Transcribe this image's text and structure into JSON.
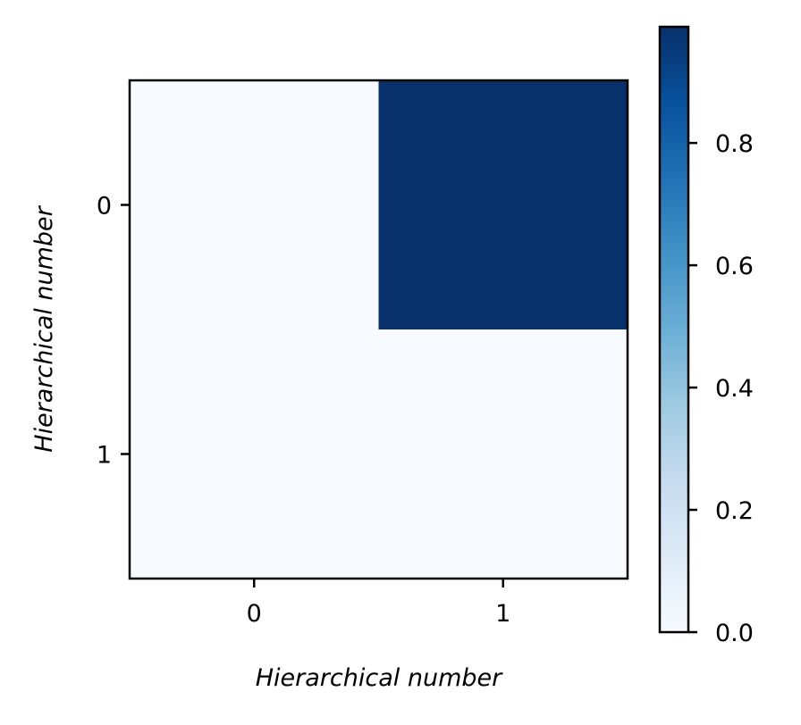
{
  "chart_data": {
    "type": "heatmap",
    "title": "",
    "xlabel": "Hierarchical number",
    "ylabel": "Hierarchical number",
    "x_categories": [
      "0",
      "1"
    ],
    "y_categories": [
      "0",
      "1"
    ],
    "values": [
      [
        0.0,
        0.99
      ],
      [
        0.0,
        0.0
      ]
    ],
    "colormap": "Blues",
    "colorbar": {
      "min": 0.0,
      "max": 0.99,
      "ticks": [
        0.0,
        0.2,
        0.4,
        0.6,
        0.8
      ],
      "tick_labels": [
        "0.0",
        "0.2",
        "0.4",
        "0.6",
        "0.8"
      ]
    },
    "colors": {
      "low": "#f7fbff",
      "high": "#08306b",
      "axes": "#000000"
    },
    "grid": false
  }
}
